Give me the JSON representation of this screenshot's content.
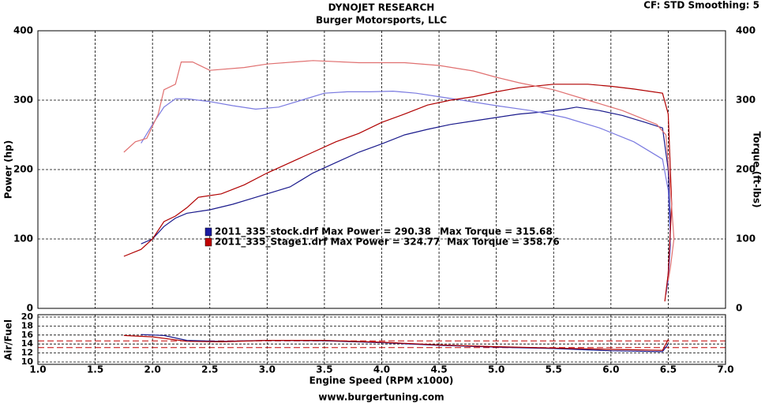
{
  "chart_data": [
    {
      "type": "line",
      "title": "DYNOJET RESEARCH",
      "subtitle": "Burger Motorsports, LLC",
      "corner_note": "CF: STD  Smoothing: 5",
      "ylabel": "Power (hp)",
      "y2label": "Torque (ft-lbs)",
      "xlim": [
        1,
        7
      ],
      "ylim": [
        0,
        400
      ],
      "yticks": [
        0,
        100,
        200,
        300,
        400
      ],
      "y2lim": [
        0,
        400
      ],
      "y2ticks": [
        0,
        100,
        200,
        300,
        400
      ],
      "grid": true,
      "legend": [
        {
          "color": "#1a1aa0",
          "label": "2011_335_stock.drf Max Power = 290.38",
          "torque_label": "Max Torque = 315.68"
        },
        {
          "color": "#c00000",
          "label": "2011_335_Stage1.drf Max Power = 324.77",
          "torque_label": "Max Torque = 358.76"
        }
      ],
      "series": [
        {
          "color": "#1a1a8c",
          "axis": "y",
          "x": [
            1.9,
            2.0,
            2.1,
            2.2,
            2.3,
            2.5,
            2.7,
            3.0,
            3.2,
            3.4,
            3.6,
            3.8,
            4.0,
            4.2,
            4.4,
            4.6,
            4.8,
            5.0,
            5.2,
            5.4,
            5.6,
            5.7,
            5.9,
            6.1,
            6.3,
            6.45,
            6.5,
            6.52,
            6.5,
            6.48
          ],
          "values": [
            93,
            100,
            118,
            130,
            137,
            142,
            150,
            165,
            175,
            195,
            210,
            225,
            237,
            250,
            258,
            265,
            270,
            275,
            280,
            283,
            287,
            290,
            285,
            278,
            268,
            260,
            200,
            120,
            50,
            20
          ]
        },
        {
          "color": "#7a7ae0",
          "axis": "y2",
          "x": [
            1.9,
            2.0,
            2.1,
            2.2,
            2.3,
            2.5,
            2.7,
            2.9,
            3.1,
            3.3,
            3.5,
            3.7,
            3.9,
            4.1,
            4.3,
            4.5,
            4.7,
            5.0,
            5.3,
            5.6,
            5.9,
            6.2,
            6.45,
            6.5,
            6.52,
            6.5,
            6.48
          ],
          "values": [
            238,
            265,
            290,
            302,
            302,
            298,
            292,
            287,
            290,
            300,
            310,
            312,
            312,
            313,
            310,
            305,
            300,
            292,
            285,
            275,
            260,
            240,
            215,
            170,
            90,
            40,
            20
          ]
        },
        {
          "color": "#b00000",
          "axis": "y",
          "x": [
            1.75,
            1.9,
            2.0,
            2.1,
            2.2,
            2.3,
            2.4,
            2.6,
            2.8,
            3.0,
            3.2,
            3.4,
            3.6,
            3.8,
            4.0,
            4.2,
            4.4,
            4.6,
            4.8,
            5.0,
            5.2,
            5.5,
            5.8,
            6.0,
            6.2,
            6.45,
            6.5,
            6.53,
            6.5,
            6.47
          ],
          "values": [
            75,
            85,
            100,
            125,
            133,
            145,
            160,
            165,
            178,
            195,
            210,
            225,
            240,
            252,
            268,
            280,
            293,
            300,
            305,
            312,
            318,
            323,
            323,
            320,
            316,
            310,
            280,
            150,
            50,
            10
          ]
        },
        {
          "color": "#e07070",
          "axis": "y2",
          "x": [
            1.75,
            1.85,
            1.95,
            2.05,
            2.1,
            2.2,
            2.25,
            2.35,
            2.5,
            2.8,
            3.0,
            3.4,
            3.8,
            4.2,
            4.5,
            4.8,
            5.0,
            5.2,
            5.5,
            5.8,
            6.1,
            6.4,
            6.48,
            6.52,
            6.55,
            6.52,
            6.5
          ],
          "values": [
            225,
            240,
            245,
            280,
            315,
            323,
            355,
            355,
            343,
            347,
            352,
            357,
            354,
            354,
            350,
            342,
            333,
            325,
            315,
            300,
            285,
            265,
            250,
            170,
            100,
            60,
            40
          ]
        }
      ]
    },
    {
      "type": "line",
      "ylabel": "Air/Fuel",
      "xlabel": "Engine Speed (RPM x1000)",
      "footer": "www.burgertuning.com",
      "xlim": [
        1,
        7
      ],
      "xticks": [
        {
          "value": 1,
          "label": "1.0"
        },
        {
          "value": 1.5,
          "label": "1.5"
        },
        {
          "value": 2,
          "label": "2.0"
        },
        {
          "value": 2.5,
          "label": "2.5"
        },
        {
          "value": 3,
          "label": "3.0"
        },
        {
          "value": 3.5,
          "label": "3.5"
        },
        {
          "value": 4,
          "label": "4.0"
        },
        {
          "value": 4.5,
          "label": "4.5"
        },
        {
          "value": 5,
          "label": "5.0"
        },
        {
          "value": 5.5,
          "label": "5.5"
        },
        {
          "value": 6,
          "label": "6.0"
        },
        {
          "value": 6.5,
          "label": "6.5"
        },
        {
          "value": 7,
          "label": "7.0"
        }
      ],
      "ylim": [
        10,
        20
      ],
      "yticks": [
        20,
        18,
        16,
        14,
        12,
        10
      ],
      "grid": true,
      "ref_lines": [
        14.7,
        13.2
      ],
      "ref_color": "#c00000",
      "series": [
        {
          "color": "#1a1a8c",
          "x": [
            1.9,
            2.1,
            2.3,
            2.6,
            3.0,
            3.5,
            4.0,
            4.5,
            5.0,
            5.5,
            6.0,
            6.45,
            6.5
          ],
          "values": [
            16.1,
            15.9,
            14.8,
            14.6,
            14.8,
            14.7,
            14.3,
            13.7,
            13.3,
            13.0,
            12.5,
            12.3,
            14
          ]
        },
        {
          "color": "#b00000",
          "x": [
            1.75,
            2.0,
            2.3,
            2.6,
            3.0,
            3.5,
            4.0,
            4.5,
            5.0,
            5.5,
            6.0,
            6.45,
            6.5
          ],
          "values": [
            15.9,
            15.6,
            14.6,
            14.5,
            14.8,
            14.8,
            14.4,
            13.8,
            13.4,
            13.1,
            12.8,
            12.6,
            15
          ]
        }
      ]
    }
  ]
}
